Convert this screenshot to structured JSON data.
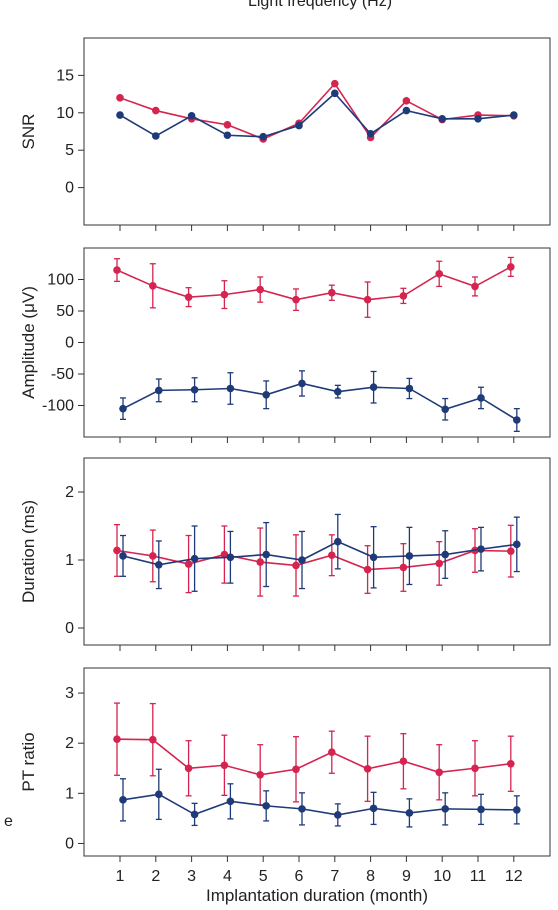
{
  "header_text": "Light frequency (Hz)",
  "side_text": "e",
  "colors": {
    "red": "#d4244f",
    "blue": "#1e3a78",
    "axis": "#333333"
  },
  "xlabel": "Implantation duration (month)",
  "x_ticks": [
    "1",
    "2",
    "3",
    "4",
    "5",
    "6",
    "7",
    "8",
    "9",
    "10",
    "11",
    "12"
  ],
  "chart_data": [
    {
      "type": "line",
      "ylabel": "SNR",
      "ylim": [
        -5,
        20
      ],
      "yticks": [
        0,
        5,
        10,
        15
      ],
      "ytick_labels": [
        "0",
        "5",
        "10",
        "15"
      ],
      "x": [
        1,
        2,
        3,
        4,
        5,
        6,
        7,
        8,
        9,
        10,
        11,
        12
      ],
      "series": [
        {
          "color": "#d4244f",
          "values": [
            12.0,
            10.3,
            9.2,
            8.4,
            6.5,
            8.6,
            13.9,
            6.7,
            11.6,
            9.1,
            9.7,
            9.6
          ]
        },
        {
          "color": "#1e3a78",
          "values": [
            9.7,
            6.9,
            9.6,
            7.0,
            6.8,
            8.3,
            12.6,
            7.2,
            10.3,
            9.2,
            9.2,
            9.7
          ]
        }
      ]
    },
    {
      "type": "line",
      "ylabel": "Amplitude (μV)",
      "ylim": [
        -150,
        150
      ],
      "yticks": [
        100,
        50,
        0,
        -50,
        -100
      ],
      "ytick_labels": [
        "100",
        "50",
        "0",
        "-50",
        "-100"
      ],
      "x": [
        1,
        2,
        3,
        4,
        5,
        6,
        7,
        8,
        9,
        10,
        11,
        12
      ],
      "series": [
        {
          "color": "#d4244f",
          "values": [
            115,
            90,
            72,
            76,
            84,
            68,
            79,
            68,
            74,
            109,
            89,
            120
          ],
          "errors": [
            18,
            35,
            15,
            22,
            20,
            17,
            12,
            28,
            12,
            20,
            15,
            15
          ]
        },
        {
          "color": "#1e3a78",
          "values": [
            -105,
            -76,
            -75,
            -73,
            -83,
            -65,
            -78,
            -71,
            -73,
            -106,
            -88,
            -123
          ],
          "errors": [
            17,
            18,
            19,
            25,
            22,
            20,
            10,
            25,
            16,
            17,
            17,
            18
          ]
        }
      ]
    },
    {
      "type": "line",
      "ylabel": "Duration (ms)",
      "ylim": [
        -0.25,
        2.5
      ],
      "yticks": [
        0,
        1,
        2
      ],
      "ytick_labels": [
        "0",
        "1",
        "2"
      ],
      "x": [
        1,
        2,
        3,
        4,
        5,
        6,
        7,
        8,
        9,
        10,
        11,
        12
      ],
      "series": [
        {
          "color": "#d4244f",
          "values": [
            1.14,
            1.06,
            0.94,
            1.08,
            0.97,
            0.92,
            1.07,
            0.86,
            0.89,
            0.95,
            1.14,
            1.13
          ],
          "errors": [
            0.38,
            0.38,
            0.42,
            0.42,
            0.5,
            0.45,
            0.3,
            0.35,
            0.35,
            0.32,
            0.32,
            0.38
          ]
        },
        {
          "color": "#1e3a78",
          "values": [
            1.06,
            0.93,
            1.02,
            1.04,
            1.08,
            1.0,
            1.27,
            1.04,
            1.06,
            1.08,
            1.16,
            1.23
          ],
          "errors": [
            0.3,
            0.35,
            0.48,
            0.38,
            0.47,
            0.42,
            0.4,
            0.45,
            0.42,
            0.35,
            0.32,
            0.4
          ]
        }
      ]
    },
    {
      "type": "line",
      "ylabel": "PT ratio",
      "ylim": [
        -0.25,
        3.5
      ],
      "yticks": [
        0,
        1,
        2,
        3
      ],
      "ytick_labels": [
        "0",
        "1",
        "2",
        "3"
      ],
      "x": [
        1,
        2,
        3,
        4,
        5,
        6,
        7,
        8,
        9,
        10,
        11,
        12
      ],
      "series": [
        {
          "color": "#d4244f",
          "values": [
            2.08,
            2.07,
            1.5,
            1.56,
            1.37,
            1.48,
            1.82,
            1.49,
            1.64,
            1.42,
            1.5,
            1.59
          ],
          "errors": [
            0.72,
            0.72,
            0.55,
            0.6,
            0.6,
            0.65,
            0.42,
            0.65,
            0.55,
            0.55,
            0.55,
            0.55
          ]
        },
        {
          "color": "#1e3a78",
          "values": [
            0.87,
            0.98,
            0.58,
            0.84,
            0.75,
            0.69,
            0.57,
            0.7,
            0.61,
            0.69,
            0.68,
            0.67
          ],
          "errors": [
            0.42,
            0.5,
            0.22,
            0.35,
            0.3,
            0.32,
            0.22,
            0.32,
            0.28,
            0.32,
            0.3,
            0.28
          ]
        }
      ]
    }
  ]
}
